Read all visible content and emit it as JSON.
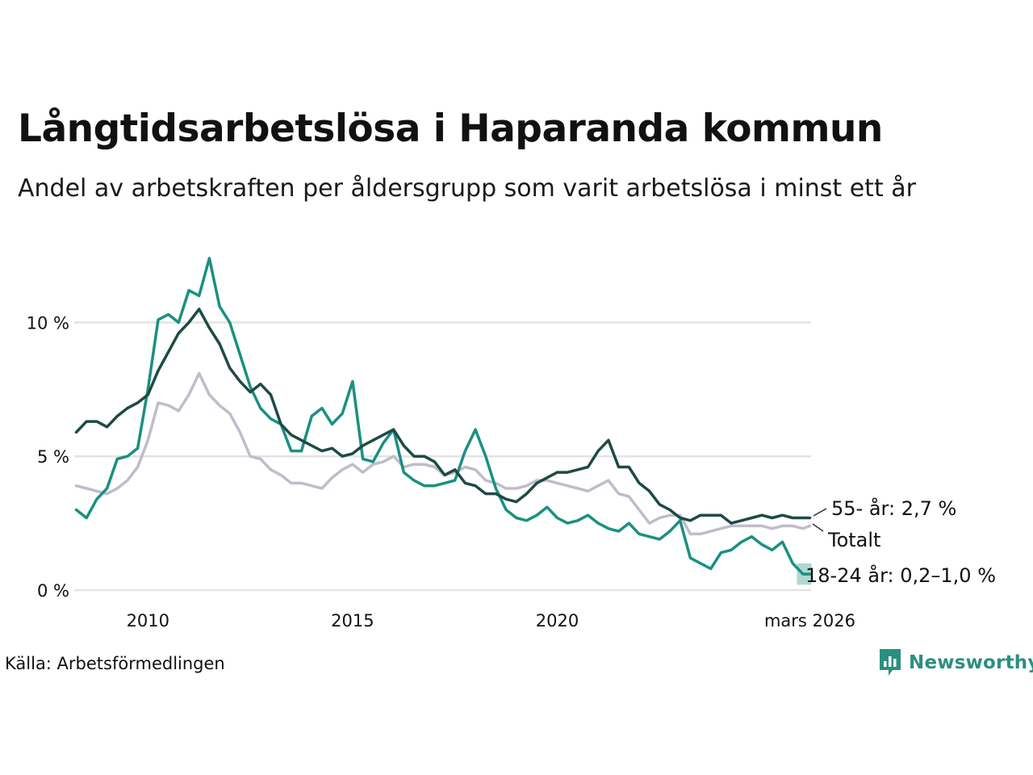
{
  "header": {
    "title": "Långtidsarbetslösa i Haparanda kommun",
    "subtitle": "Andel av arbetskraften per åldersgrupp som varit arbetslösa i minst ett år"
  },
  "footer": {
    "source": "Källa: Arbetsförmedlingen",
    "brand": "Newsworthy"
  },
  "colors": {
    "age_55_plus": "#1e4a44",
    "total": "#c0bccb",
    "age_18_24": "#1a9080",
    "grid": "#e3e3e3",
    "brand": "#2a8f81"
  },
  "chart_data": {
    "type": "line",
    "title": "Långtidsarbetslösa i Haparanda kommun",
    "subtitle": "Andel av arbetskraften per åldersgrupp som varit arbetslösa i minst ett år",
    "xlabel": "",
    "ylabel": "",
    "xlim": [
      2008.2,
      2026.2
    ],
    "ylim": [
      0,
      13
    ],
    "y_ticks": [
      {
        "value": 0,
        "label": "0 %"
      },
      {
        "value": 5,
        "label": "5 %"
      },
      {
        "value": 10,
        "label": "10 %"
      }
    ],
    "x_ticks": [
      {
        "value": 2010,
        "label": "2010"
      },
      {
        "value": 2015,
        "label": "2015"
      },
      {
        "value": 2020,
        "label": "2020"
      },
      {
        "value": 2026.17,
        "label": "mars 2026"
      }
    ],
    "grid": true,
    "series": [
      {
        "name": "Totalt",
        "key": "total",
        "end_label": "Totalt",
        "x": [
          2008.25,
          2008.5,
          2008.75,
          2009.0,
          2009.25,
          2009.5,
          2009.75,
          2010.0,
          2010.25,
          2010.5,
          2010.75,
          2011.0,
          2011.25,
          2011.5,
          2011.75,
          2012.0,
          2012.25,
          2012.5,
          2012.75,
          2013.0,
          2013.25,
          2013.5,
          2013.75,
          2014.0,
          2014.25,
          2014.5,
          2014.75,
          2015.0,
          2015.25,
          2015.5,
          2015.75,
          2016.0,
          2016.25,
          2016.5,
          2016.75,
          2017.0,
          2017.25,
          2017.5,
          2017.75,
          2018.0,
          2018.25,
          2018.5,
          2018.75,
          2019.0,
          2019.25,
          2019.5,
          2019.75,
          2020.0,
          2020.25,
          2020.5,
          2020.75,
          2021.0,
          2021.25,
          2021.5,
          2021.75,
          2022.0,
          2022.25,
          2022.5,
          2022.75,
          2023.0,
          2023.25,
          2023.5,
          2023.75,
          2024.0,
          2024.25,
          2024.5,
          2024.75,
          2025.0,
          2025.25,
          2025.5,
          2025.75,
          2026.0,
          2026.17
        ],
        "values": [
          3.9,
          3.8,
          3.7,
          3.6,
          3.8,
          4.1,
          4.6,
          5.6,
          7.0,
          6.9,
          6.7,
          7.3,
          8.1,
          7.3,
          6.9,
          6.6,
          5.9,
          5.0,
          4.9,
          4.5,
          4.3,
          4.0,
          4.0,
          3.9,
          3.8,
          4.2,
          4.5,
          4.7,
          4.4,
          4.7,
          4.8,
          5.0,
          4.6,
          4.7,
          4.7,
          4.6,
          4.3,
          4.4,
          4.6,
          4.5,
          4.1,
          4.0,
          3.8,
          3.8,
          3.9,
          4.1,
          4.1,
          4.0,
          3.9,
          3.8,
          3.7,
          3.9,
          4.1,
          3.6,
          3.5,
          3.0,
          2.5,
          2.7,
          2.8,
          2.8,
          2.1,
          2.1,
          2.2,
          2.3,
          2.4,
          2.4,
          2.4,
          2.4,
          2.3,
          2.4,
          2.4,
          2.3,
          2.4
        ],
        "last_value": "2,4 %"
      },
      {
        "name": "55- år",
        "key": "age_55_plus",
        "end_label": "55- år: 2,7 %",
        "x": [
          2008.25,
          2008.5,
          2008.75,
          2009.0,
          2009.25,
          2009.5,
          2009.75,
          2010.0,
          2010.25,
          2010.5,
          2010.75,
          2011.0,
          2011.25,
          2011.5,
          2011.75,
          2012.0,
          2012.25,
          2012.5,
          2012.75,
          2013.0,
          2013.25,
          2013.5,
          2013.75,
          2014.0,
          2014.25,
          2014.5,
          2014.75,
          2015.0,
          2015.25,
          2015.5,
          2015.75,
          2016.0,
          2016.25,
          2016.5,
          2016.75,
          2017.0,
          2017.25,
          2017.5,
          2017.75,
          2018.0,
          2018.25,
          2018.5,
          2018.75,
          2019.0,
          2019.25,
          2019.5,
          2019.75,
          2020.0,
          2020.25,
          2020.5,
          2020.75,
          2021.0,
          2021.25,
          2021.5,
          2021.75,
          2022.0,
          2022.25,
          2022.5,
          2022.75,
          2023.0,
          2023.25,
          2023.5,
          2023.75,
          2024.0,
          2024.25,
          2024.5,
          2024.75,
          2025.0,
          2025.25,
          2025.5,
          2025.75,
          2026.0,
          2026.17
        ],
        "values": [
          5.9,
          6.3,
          6.3,
          6.1,
          6.5,
          6.8,
          7.0,
          7.3,
          8.2,
          8.9,
          9.6,
          10.0,
          10.5,
          9.8,
          9.2,
          8.3,
          7.8,
          7.4,
          7.7,
          7.3,
          6.2,
          5.8,
          5.6,
          5.4,
          5.2,
          5.3,
          5.0,
          5.1,
          5.4,
          5.6,
          5.8,
          6.0,
          5.4,
          5.0,
          5.0,
          4.8,
          4.3,
          4.5,
          4.0,
          3.9,
          3.6,
          3.6,
          3.4,
          3.3,
          3.6,
          4.0,
          4.2,
          4.4,
          4.4,
          4.5,
          4.6,
          5.2,
          5.6,
          4.6,
          4.6,
          4.0,
          3.7,
          3.2,
          3.0,
          2.7,
          2.6,
          2.8,
          2.8,
          2.8,
          2.5,
          2.6,
          2.7,
          2.8,
          2.7,
          2.8,
          2.7,
          2.7,
          2.7
        ],
        "last_value": "2,7 %"
      },
      {
        "name": "18-24 år",
        "key": "age_18_24",
        "end_label": "18-24 år: 0,2–1,0 %",
        "x": [
          2008.25,
          2008.5,
          2008.75,
          2009.0,
          2009.25,
          2009.5,
          2009.75,
          2010.0,
          2010.25,
          2010.5,
          2010.75,
          2011.0,
          2011.25,
          2011.5,
          2011.75,
          2012.0,
          2012.25,
          2012.5,
          2012.75,
          2013.0,
          2013.25,
          2013.5,
          2013.75,
          2014.0,
          2014.25,
          2014.5,
          2014.75,
          2015.0,
          2015.25,
          2015.5,
          2015.75,
          2016.0,
          2016.25,
          2016.5,
          2016.75,
          2017.0,
          2017.25,
          2017.5,
          2017.75,
          2018.0,
          2018.25,
          2018.5,
          2018.75,
          2019.0,
          2019.25,
          2019.5,
          2019.75,
          2020.0,
          2020.25,
          2020.5,
          2020.75,
          2021.0,
          2021.25,
          2021.5,
          2021.75,
          2022.0,
          2022.25,
          2022.5,
          2022.75,
          2023.0,
          2023.25,
          2023.5,
          2023.75,
          2024.0,
          2024.25,
          2024.5,
          2024.75,
          2025.0,
          2025.25,
          2025.5,
          2025.75,
          2026.0,
          2026.17
        ],
        "values": [
          3.0,
          2.7,
          3.4,
          3.8,
          4.9,
          5.0,
          5.3,
          7.5,
          10.1,
          10.3,
          10.0,
          11.2,
          11.0,
          12.4,
          10.6,
          10.0,
          8.8,
          7.6,
          6.8,
          6.4,
          6.2,
          5.2,
          5.2,
          6.5,
          6.8,
          6.2,
          6.6,
          7.8,
          4.9,
          4.8,
          5.5,
          6.0,
          4.4,
          4.1,
          3.9,
          3.9,
          4.0,
          4.1,
          5.2,
          6.0,
          5.0,
          3.8,
          3.0,
          2.7,
          2.6,
          2.8,
          3.1,
          2.7,
          2.5,
          2.6,
          2.8,
          2.5,
          2.3,
          2.2,
          2.5,
          2.1,
          2.0,
          1.9,
          2.2,
          2.6,
          1.2,
          1.0,
          0.8,
          1.4,
          1.5,
          1.8,
          2.0,
          1.7,
          1.5,
          1.8,
          1.0,
          0.6,
          0.6
        ],
        "last_value": "0,2–1,0 %",
        "range_low": 0.2,
        "range_high": 1.0
      }
    ]
  }
}
